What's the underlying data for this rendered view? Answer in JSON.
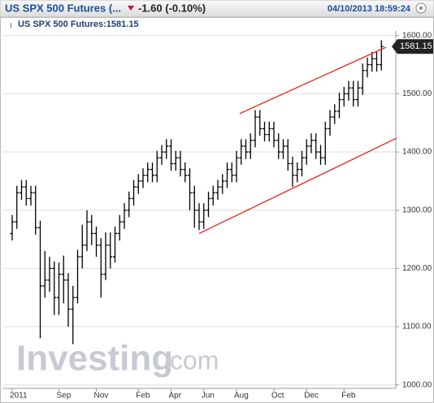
{
  "header": {
    "instrument": "US SPX 500 Futures (...",
    "change": "-1.60 (-0.10%)",
    "timestamp": "04/10/2013 18:59:24"
  },
  "chart_data": {
    "type": "ohlc",
    "subtitle": "US SPX 500 Futures:1581.15",
    "watermark": {
      "main": "Investing",
      "suffix": ".com"
    },
    "color": "#000000",
    "grid": true,
    "categories": [
      "2011",
      null,
      null,
      null,
      null,
      null,
      null,
      null,
      null,
      null,
      "Sep",
      null,
      null,
      null,
      null,
      null,
      null,
      null,
      "Nov",
      null,
      null,
      null,
      null,
      null,
      null,
      null,
      null,
      "Feb",
      null,
      null,
      null,
      null,
      null,
      null,
      "Apr",
      null,
      null,
      null,
      null,
      null,
      null,
      "Jun",
      null,
      null,
      null,
      null,
      null,
      null,
      "Aug",
      null,
      null,
      null,
      null,
      null,
      null,
      null,
      "Oct",
      null,
      null,
      null,
      null,
      null,
      null,
      "Dec",
      null,
      null,
      null,
      null,
      null,
      null,
      null,
      "Feb",
      null,
      null,
      null,
      null,
      null,
      null,
      null,
      null
    ],
    "open": [
      1260,
      1280,
      1330,
      1340,
      1320,
      1330,
      1270,
      1170,
      1180,
      1200,
      1150,
      1190,
      1180,
      1130,
      1150,
      1220,
      1240,
      1280,
      1260,
      1240,
      1190,
      1240,
      1220,
      1260,
      1280,
      1300,
      1320,
      1340,
      1350,
      1360,
      1370,
      1360,
      1390,
      1400,
      1410,
      1380,
      1390,
      1370,
      1360,
      1330,
      1300,
      1280,
      1300,
      1320,
      1330,
      1340,
      1350,
      1370,
      1360,
      1390,
      1410,
      1400,
      1420,
      1460,
      1440,
      1430,
      1440,
      1420,
      1400,
      1410,
      1380,
      1360,
      1370,
      1390,
      1410,
      1420,
      1400,
      1390,
      1440,
      1460,
      1470,
      1490,
      1500,
      1510,
      1490,
      1510,
      1540,
      1550,
      1560,
      1550
    ],
    "high": [
      1292,
      1342,
      1352,
      1352,
      1342,
      1342,
      1282,
      1230,
      1220,
      1212,
      1210,
      1222,
      1192,
      1170,
      1232,
      1275,
      1300,
      1292,
      1272,
      1252,
      1262,
      1262,
      1272,
      1292,
      1312,
      1332,
      1352,
      1362,
      1372,
      1382,
      1382,
      1402,
      1412,
      1422,
      1422,
      1402,
      1402,
      1382,
      1372,
      1342,
      1312,
      1312,
      1332,
      1342,
      1352,
      1362,
      1382,
      1382,
      1402,
      1422,
      1422,
      1432,
      1472,
      1472,
      1452,
      1452,
      1452,
      1432,
      1422,
      1422,
      1392,
      1382,
      1402,
      1422,
      1432,
      1432,
      1412,
      1452,
      1472,
      1482,
      1502,
      1512,
      1522,
      1522,
      1522,
      1552,
      1562,
      1572,
      1572,
      1592
    ],
    "low": [
      1248,
      1268,
      1318,
      1308,
      1308,
      1258,
      1080,
      1150,
      1160,
      1120,
      1120,
      1140,
      1100,
      1070,
      1140,
      1200,
      1230,
      1240,
      1220,
      1150,
      1180,
      1200,
      1210,
      1248,
      1268,
      1288,
      1308,
      1328,
      1338,
      1348,
      1348,
      1348,
      1378,
      1388,
      1368,
      1368,
      1358,
      1348,
      1300,
      1270,
      1266,
      1268,
      1288,
      1308,
      1318,
      1328,
      1338,
      1348,
      1348,
      1378,
      1388,
      1388,
      1408,
      1428,
      1418,
      1418,
      1408,
      1388,
      1388,
      1368,
      1340,
      1348,
      1358,
      1378,
      1398,
      1388,
      1378,
      1378,
      1428,
      1448,
      1458,
      1478,
      1488,
      1478,
      1478,
      1498,
      1528,
      1538,
      1538,
      1540
    ],
    "close": [
      1280,
      1330,
      1340,
      1320,
      1330,
      1270,
      1170,
      1180,
      1200,
      1150,
      1190,
      1180,
      1130,
      1150,
      1220,
      1240,
      1280,
      1260,
      1240,
      1190,
      1240,
      1220,
      1260,
      1280,
      1300,
      1320,
      1340,
      1350,
      1360,
      1370,
      1360,
      1390,
      1400,
      1410,
      1380,
      1390,
      1370,
      1360,
      1330,
      1300,
      1280,
      1300,
      1320,
      1330,
      1340,
      1350,
      1370,
      1360,
      1390,
      1410,
      1400,
      1420,
      1460,
      1440,
      1430,
      1440,
      1420,
      1400,
      1410,
      1380,
      1360,
      1370,
      1390,
      1410,
      1420,
      1400,
      1390,
      1440,
      1460,
      1470,
      1490,
      1500,
      1510,
      1490,
      1510,
      1540,
      1550,
      1560,
      1550,
      1581.15
    ],
    "trendlines": [
      {
        "color": "#e8332a",
        "x": [
          48.7,
          80
        ],
        "values": [
          1466,
          1580
        ]
      },
      {
        "color": "#e8332a",
        "x": [
          40,
          82.3
        ],
        "values": [
          1260,
          1424
        ]
      }
    ],
    "ylim": [
      994,
      1608
    ],
    "yticks": [
      {
        "value": 1000,
        "label": "1000.00"
      },
      {
        "value": 1100,
        "label": "1100.00"
      },
      {
        "value": 1200,
        "label": "1200.00"
      },
      {
        "value": 1300,
        "label": "1300.00"
      },
      {
        "value": 1400,
        "label": "1400.00"
      },
      {
        "value": 1500,
        "label": "1500.00"
      },
      {
        "value": 1600,
        "label": "1600.00"
      }
    ]
  }
}
